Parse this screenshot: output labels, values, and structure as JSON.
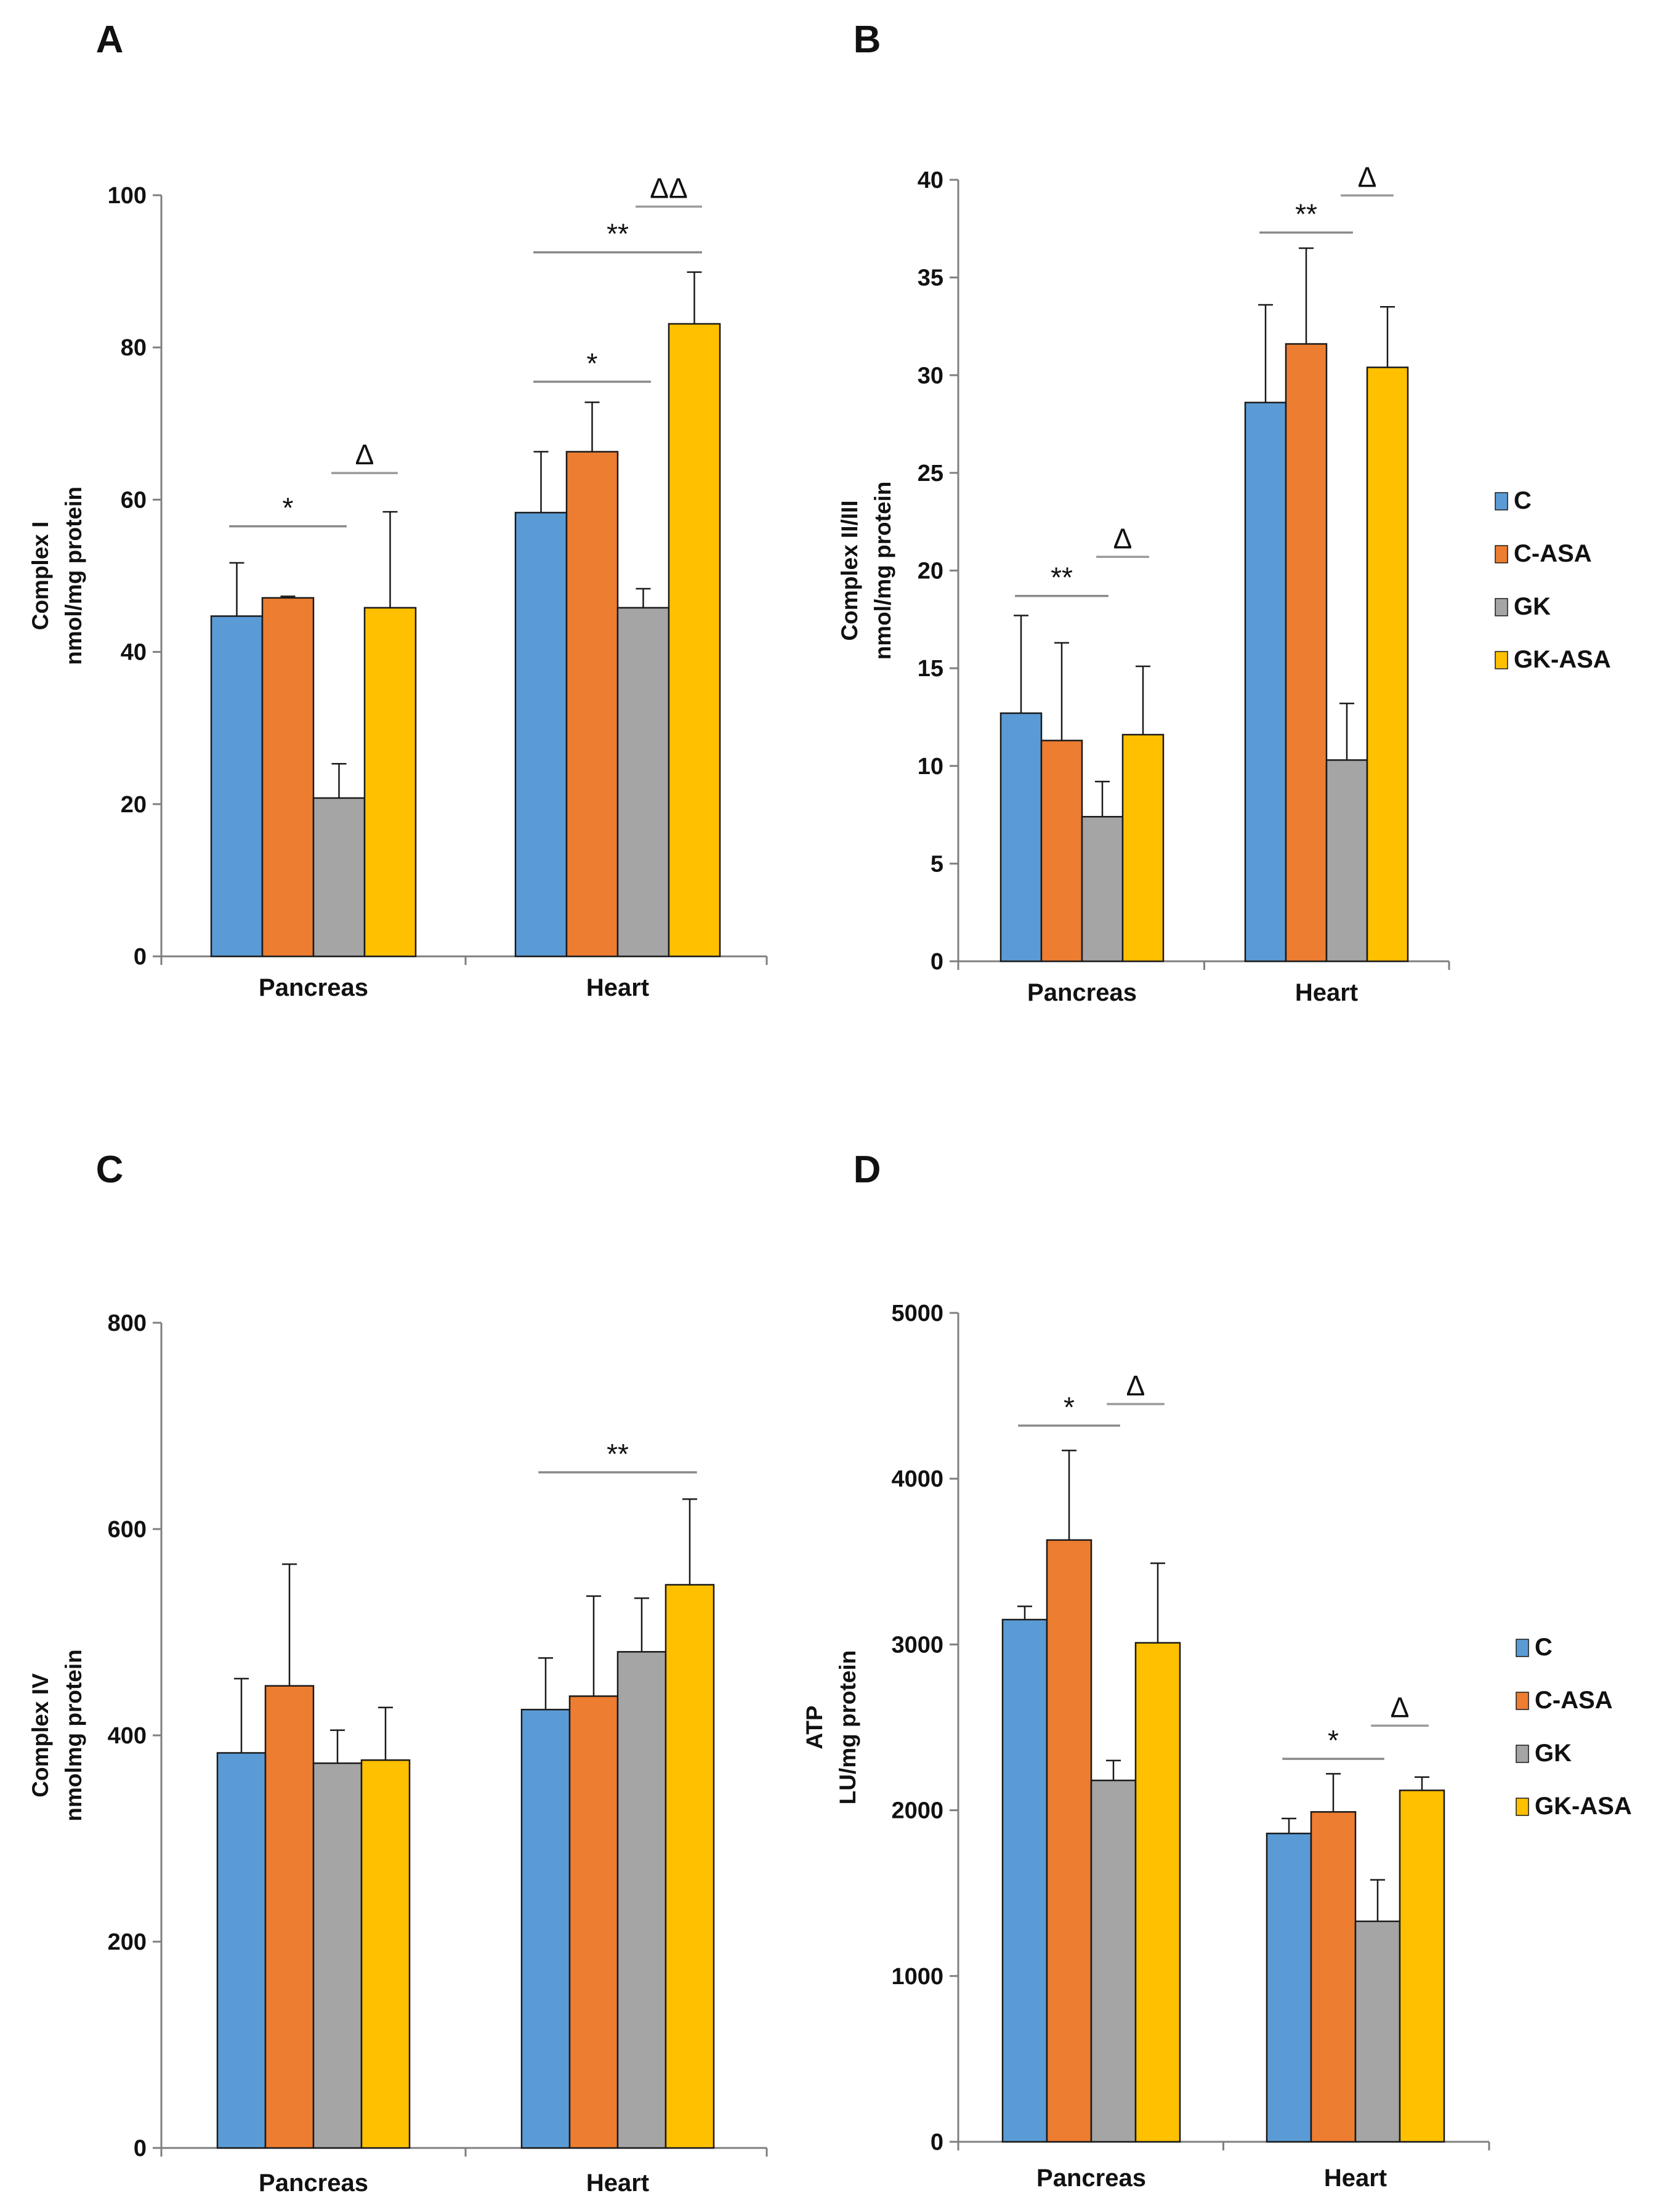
{
  "legend": [
    "C",
    "C-ASA",
    "GK",
    "GK-ASA"
  ],
  "colors": {
    "C": "#5B9BD5",
    "C-ASA": "#ED7D31",
    "GK": "#A5A5A5",
    "GK-ASA": "#FFC000"
  },
  "chart_data": [
    {
      "panel": "A",
      "type": "bar",
      "categories": [
        "Pancreas",
        "Heart"
      ],
      "ylabel": [
        "Complex I",
        "nmol/mg protein"
      ],
      "ylim": [
        0,
        100
      ],
      "yticks": [
        "0",
        "20",
        "40",
        "60",
        "80",
        "100"
      ],
      "series": [
        {
          "name": "C",
          "values": [
            44.7,
            58.3
          ],
          "errors": [
            7.0,
            8.0
          ]
        },
        {
          "name": "C-ASA",
          "values": [
            47.1,
            66.3
          ],
          "errors": [
            0.2,
            6.5
          ]
        },
        {
          "name": "GK",
          "values": [
            20.8,
            45.8
          ],
          "errors": [
            4.5,
            2.5
          ]
        },
        {
          "name": "GK-ASA",
          "values": [
            45.8,
            83.1
          ],
          "errors": [
            12.6,
            6.8
          ]
        }
      ],
      "annotations": [
        {
          "label": "*",
          "category": 0,
          "from": 0,
          "to": 2,
          "y": 56.5
        },
        {
          "label": "Δ",
          "category": 0,
          "from": 2,
          "to": 3,
          "y": 63.5
        },
        {
          "label": "*",
          "category": 1,
          "from": 0,
          "to": 2,
          "y": 75.5
        },
        {
          "label": "**",
          "category": 1,
          "from": 0,
          "to": 3,
          "y": 92.5
        },
        {
          "label": "ΔΔ",
          "category": 1,
          "from": 2,
          "to": 3,
          "y": 98.5
        }
      ]
    },
    {
      "panel": "B",
      "type": "bar",
      "categories": [
        "Pancreas",
        "Heart"
      ],
      "ylabel": [
        "Complex II/III",
        "nmol/mg protein"
      ],
      "ylim": [
        0,
        40
      ],
      "yticks": [
        "0",
        "5",
        "10",
        "15",
        "20",
        "25",
        "30",
        "35",
        "40"
      ],
      "series": [
        {
          "name": "C",
          "values": [
            12.7,
            28.6
          ],
          "errors": [
            5.0,
            5.0
          ]
        },
        {
          "name": "C-ASA",
          "values": [
            11.3,
            31.6
          ],
          "errors": [
            5.0,
            4.9
          ]
        },
        {
          "name": "GK",
          "values": [
            7.4,
            10.3
          ],
          "errors": [
            1.8,
            2.9
          ]
        },
        {
          "name": "GK-ASA",
          "values": [
            11.6,
            30.4
          ],
          "errors": [
            3.5,
            3.1
          ]
        }
      ],
      "annotations": [
        {
          "label": "**",
          "category": 0,
          "from": 0,
          "to": 2,
          "y": 18.7
        },
        {
          "label": "Δ",
          "category": 0,
          "from": 2,
          "to": 3,
          "y": 20.7
        },
        {
          "label": "**",
          "category": 1,
          "from": 0,
          "to": 2,
          "y": 37.3
        },
        {
          "label": "Δ",
          "category": 1,
          "from": 2,
          "to": 3,
          "y": 39.2
        }
      ]
    },
    {
      "panel": "C",
      "type": "bar",
      "categories": [
        "Pancreas",
        "Heart"
      ],
      "ylabel": [
        "Complex IV",
        "nmolmg protein"
      ],
      "ylim": [
        0,
        800
      ],
      "yticks": [
        "0",
        "200",
        "400",
        "600",
        "800"
      ],
      "series": [
        {
          "name": "C",
          "values": [
            383,
            425
          ],
          "errors": [
            72,
            50
          ]
        },
        {
          "name": "C-ASA",
          "values": [
            448,
            438
          ],
          "errors": [
            118,
            97
          ]
        },
        {
          "name": "GK",
          "values": [
            373,
            481
          ],
          "errors": [
            32,
            52
          ]
        },
        {
          "name": "GK-ASA",
          "values": [
            376,
            546
          ],
          "errors": [
            51,
            83
          ]
        }
      ],
      "annotations": [
        {
          "label": "**",
          "category": 1,
          "from": 0,
          "to": 3,
          "y": 655
        }
      ]
    },
    {
      "panel": "D",
      "type": "bar",
      "categories": [
        "Pancreas",
        "Heart"
      ],
      "ylabel": [
        "ATP",
        "LU/mg protein"
      ],
      "ylim": [
        0,
        5000
      ],
      "yticks": [
        "0",
        "1000",
        "2000",
        "3000",
        "4000",
        "5000"
      ],
      "series": [
        {
          "name": "C",
          "values": [
            3150,
            1860
          ],
          "errors": [
            80,
            90
          ]
        },
        {
          "name": "C-ASA",
          "values": [
            3630,
            1990
          ],
          "errors": [
            540,
            230
          ]
        },
        {
          "name": "GK",
          "values": [
            2180,
            1330
          ],
          "errors": [
            120,
            250
          ]
        },
        {
          "name": "GK-ASA",
          "values": [
            3010,
            2120
          ],
          "errors": [
            480,
            80
          ]
        }
      ],
      "annotations": [
        {
          "label": "*",
          "category": 0,
          "from": 0,
          "to": 2,
          "y": 4320
        },
        {
          "label": "Δ",
          "category": 0,
          "from": 2,
          "to": 3,
          "y": 4450
        },
        {
          "label": "*",
          "category": 1,
          "from": 0,
          "to": 2,
          "y": 2310
        },
        {
          "label": "Δ",
          "category": 1,
          "from": 2,
          "to": 3,
          "y": 2510
        }
      ]
    }
  ]
}
